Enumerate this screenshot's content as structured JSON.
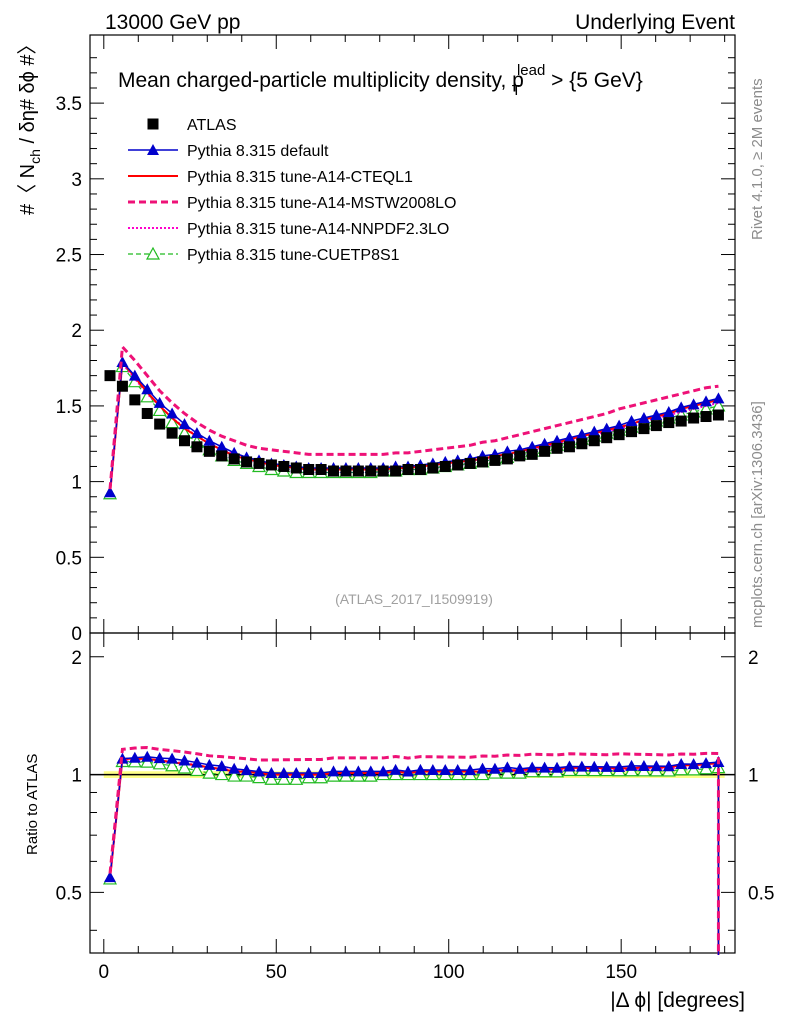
{
  "header": {
    "left": "13000 GeV pp",
    "right": "Underlying Event"
  },
  "side_labels": {
    "rivet": "Rivet 4.1.0, ≥ 2M events",
    "mcplots": "mcplots.cern.ch [arXiv:1306.3436]"
  },
  "chart_data": {
    "type": "line",
    "title": "Mean charged-particle multiplicity density, p",
    "title_sup": "lead",
    "title_sub": "T",
    "title_tail": " > {5 GeV}",
    "analysis_id": "(ATLAS_2017_I1509919)",
    "xlabel": "|Δ ϕ| [degrees]",
    "ylabel": "#〈 N",
    "ylabel_sub": "ch",
    "ylabel_tail": " / δη# δϕ #〉",
    "ratio_ylabel": "Ratio to ATLAS",
    "xlim": [
      -4,
      183
    ],
    "ylim": [
      0,
      3.95
    ],
    "ratio_ylim": [
      0.35,
      2.3
    ],
    "xticks": [
      "0",
      "50",
      "100",
      "150"
    ],
    "xtick_values": [
      0,
      50,
      100,
      150
    ],
    "yticks": [
      "0",
      "0.5",
      "1",
      "1.5",
      "2",
      "2.5",
      "3",
      "3.5"
    ],
    "ytick_values": [
      0,
      0.5,
      1,
      1.5,
      2,
      2.5,
      3,
      3.5
    ],
    "ratio_yticks": [
      "0.5",
      "1",
      "2"
    ],
    "ratio_ytick_values": [
      0.5,
      1,
      2
    ],
    "x": [
      1.8,
      5.4,
      9,
      12.6,
      16.2,
      19.8,
      23.4,
      27,
      30.6,
      34.2,
      37.8,
      41.4,
      45,
      48.6,
      52.2,
      55.8,
      59.4,
      63,
      66.6,
      70.2,
      73.8,
      77.4,
      81,
      84.6,
      88.2,
      91.8,
      95.4,
      99,
      102.6,
      106.2,
      109.8,
      113.4,
      117,
      120.6,
      124.2,
      127.8,
      131.4,
      135,
      138.6,
      142.2,
      145.8,
      149.4,
      153,
      156.6,
      160.2,
      163.8,
      167.4,
      171,
      174.6,
      178.2
    ],
    "series": [
      {
        "name": "ATLAS",
        "color": "#000000",
        "style": "marker-square",
        "values": [
          1.7,
          1.63,
          1.54,
          1.45,
          1.38,
          1.32,
          1.27,
          1.23,
          1.2,
          1.17,
          1.15,
          1.13,
          1.12,
          1.11,
          1.1,
          1.09,
          1.08,
          1.08,
          1.07,
          1.07,
          1.07,
          1.07,
          1.07,
          1.07,
          1.08,
          1.08,
          1.09,
          1.1,
          1.11,
          1.12,
          1.13,
          1.14,
          1.15,
          1.17,
          1.18,
          1.2,
          1.22,
          1.23,
          1.25,
          1.27,
          1.29,
          1.31,
          1.33,
          1.35,
          1.37,
          1.39,
          1.4,
          1.42,
          1.43,
          1.44
        ]
      },
      {
        "name": "Pythia 8.315 default",
        "color": "#0000cc",
        "style": "solid-triangle",
        "values": [
          0.93,
          1.79,
          1.7,
          1.61,
          1.52,
          1.45,
          1.38,
          1.32,
          1.27,
          1.23,
          1.19,
          1.16,
          1.14,
          1.12,
          1.11,
          1.1,
          1.09,
          1.09,
          1.09,
          1.09,
          1.09,
          1.09,
          1.09,
          1.1,
          1.1,
          1.11,
          1.12,
          1.13,
          1.14,
          1.15,
          1.17,
          1.18,
          1.2,
          1.21,
          1.23,
          1.25,
          1.27,
          1.29,
          1.31,
          1.33,
          1.35,
          1.37,
          1.4,
          1.42,
          1.44,
          1.46,
          1.49,
          1.51,
          1.53,
          1.55
        ]
      },
      {
        "name": "Pythia 8.315 tune-A14-CTEQL1",
        "color": "#ff0000",
        "style": "solid",
        "values": [
          0.92,
          1.79,
          1.69,
          1.59,
          1.5,
          1.42,
          1.35,
          1.3,
          1.25,
          1.21,
          1.17,
          1.15,
          1.13,
          1.11,
          1.1,
          1.09,
          1.08,
          1.08,
          1.08,
          1.08,
          1.08,
          1.08,
          1.08,
          1.09,
          1.09,
          1.1,
          1.11,
          1.12,
          1.13,
          1.14,
          1.15,
          1.17,
          1.18,
          1.2,
          1.22,
          1.24,
          1.26,
          1.28,
          1.3,
          1.32,
          1.34,
          1.36,
          1.38,
          1.41,
          1.43,
          1.45,
          1.48,
          1.5,
          1.52,
          1.54
        ]
      },
      {
        "name": "Pythia 8.315 tune-A14-MSTW2008LO",
        "color": "#ee1177",
        "style": "dashed",
        "values": [
          0.95,
          1.89,
          1.8,
          1.7,
          1.6,
          1.52,
          1.45,
          1.39,
          1.34,
          1.3,
          1.27,
          1.24,
          1.22,
          1.21,
          1.2,
          1.19,
          1.18,
          1.18,
          1.18,
          1.18,
          1.18,
          1.18,
          1.18,
          1.19,
          1.19,
          1.2,
          1.21,
          1.22,
          1.23,
          1.24,
          1.26,
          1.27,
          1.29,
          1.31,
          1.33,
          1.35,
          1.37,
          1.39,
          1.41,
          1.43,
          1.45,
          1.48,
          1.5,
          1.52,
          1.54,
          1.56,
          1.58,
          1.6,
          1.62,
          1.63
        ]
      },
      {
        "name": "Pythia 8.315 tune-A14-NNPDF2.3LO",
        "color": "#ff00cc",
        "style": "dotted",
        "values": [
          0.92,
          1.78,
          1.68,
          1.58,
          1.5,
          1.42,
          1.36,
          1.3,
          1.25,
          1.21,
          1.18,
          1.15,
          1.13,
          1.11,
          1.1,
          1.09,
          1.08,
          1.08,
          1.08,
          1.08,
          1.08,
          1.08,
          1.08,
          1.09,
          1.09,
          1.1,
          1.11,
          1.12,
          1.13,
          1.14,
          1.15,
          1.16,
          1.18,
          1.19,
          1.21,
          1.23,
          1.25,
          1.27,
          1.29,
          1.31,
          1.33,
          1.35,
          1.37,
          1.4,
          1.42,
          1.44,
          1.46,
          1.48,
          1.5,
          1.52
        ]
      },
      {
        "name": "Pythia 8.315 tune-CUETP8S1",
        "color": "#22bb22",
        "style": "dashed-open-triangle",
        "values": [
          0.92,
          1.76,
          1.66,
          1.56,
          1.47,
          1.39,
          1.32,
          1.26,
          1.21,
          1.17,
          1.14,
          1.12,
          1.1,
          1.08,
          1.07,
          1.06,
          1.06,
          1.06,
          1.06,
          1.06,
          1.06,
          1.06,
          1.07,
          1.07,
          1.08,
          1.08,
          1.09,
          1.1,
          1.11,
          1.12,
          1.13,
          1.15,
          1.16,
          1.18,
          1.2,
          1.22,
          1.24,
          1.26,
          1.28,
          1.3,
          1.32,
          1.34,
          1.36,
          1.38,
          1.4,
          1.42,
          1.44,
          1.46,
          1.48,
          1.5
        ]
      }
    ]
  }
}
